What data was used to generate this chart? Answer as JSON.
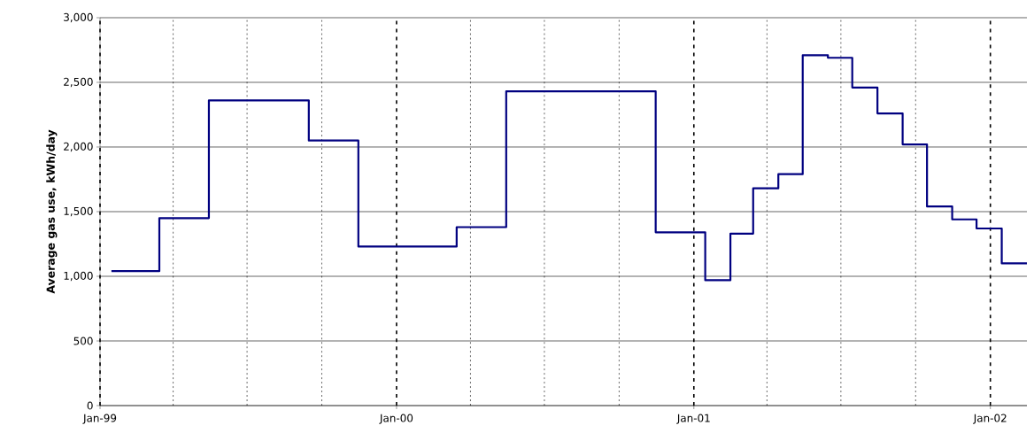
{
  "chart_data": {
    "type": "step",
    "ylabel": "Average gas use, kWh/day",
    "x": [
      "1999-01-15",
      "1999-03-15",
      "1999-05-15",
      "1999-09-15",
      "1999-11-15",
      "2000-03-15",
      "2000-05-15",
      "2000-11-15",
      "2001-01-15",
      "2001-02-15",
      "2001-03-15",
      "2001-04-15",
      "2001-05-15",
      "2001-06-15",
      "2001-07-15",
      "2001-08-15",
      "2001-09-15",
      "2001-10-15",
      "2001-11-15",
      "2001-12-15",
      "2002-01-15",
      "2002-02-15"
    ],
    "series": [
      {
        "color": "#000080",
        "values": [
          1040,
          1450,
          2360,
          2050,
          1230,
          1380,
          2430,
          1340,
          970,
          1330,
          1680,
          1790,
          2710,
          2690,
          2460,
          2260,
          2020,
          1540,
          1440,
          1370,
          1100,
          1100
        ]
      }
    ],
    "xlim": [
      "1999-01-01",
      "2002-02-15"
    ],
    "xticks": [
      {
        "value": "1999-01-01",
        "label": "Jan-99"
      },
      {
        "value": "2000-01-01",
        "label": "Jan-00"
      },
      {
        "value": "2001-01-01",
        "label": "Jan-01"
      },
      {
        "value": "2002-01-01",
        "label": "Jan-02"
      }
    ],
    "ylim": [
      0,
      3000
    ],
    "yticks": [
      {
        "value": 0,
        "label": "0"
      },
      {
        "value": 500,
        "label": "500"
      },
      {
        "value": 1000,
        "label": "1,000"
      },
      {
        "value": 1500,
        "label": "1,500"
      },
      {
        "value": 2000,
        "label": "2,000"
      },
      {
        "value": 2500,
        "label": "2,500"
      },
      {
        "value": 3000,
        "label": "3,000"
      }
    ],
    "grid": true,
    "marker": "none",
    "line_style": "solid",
    "ref_lines": [
      {
        "axis": "x",
        "value": "1999-04-01",
        "line_style": "dotted"
      },
      {
        "axis": "x",
        "value": "1999-07-01",
        "line_style": "dotted"
      },
      {
        "axis": "x",
        "value": "1999-10-01",
        "line_style": "dotted"
      },
      {
        "axis": "x",
        "value": "2000-04-01",
        "line_style": "dotted"
      },
      {
        "axis": "x",
        "value": "2000-07-01",
        "line_style": "dotted"
      },
      {
        "axis": "x",
        "value": "2000-10-01",
        "line_style": "dotted"
      },
      {
        "axis": "x",
        "value": "2001-04-01",
        "line_style": "dotted"
      },
      {
        "axis": "x",
        "value": "2001-07-01",
        "line_style": "dotted"
      },
      {
        "axis": "x",
        "value": "2001-10-01",
        "line_style": "dotted"
      }
    ]
  }
}
